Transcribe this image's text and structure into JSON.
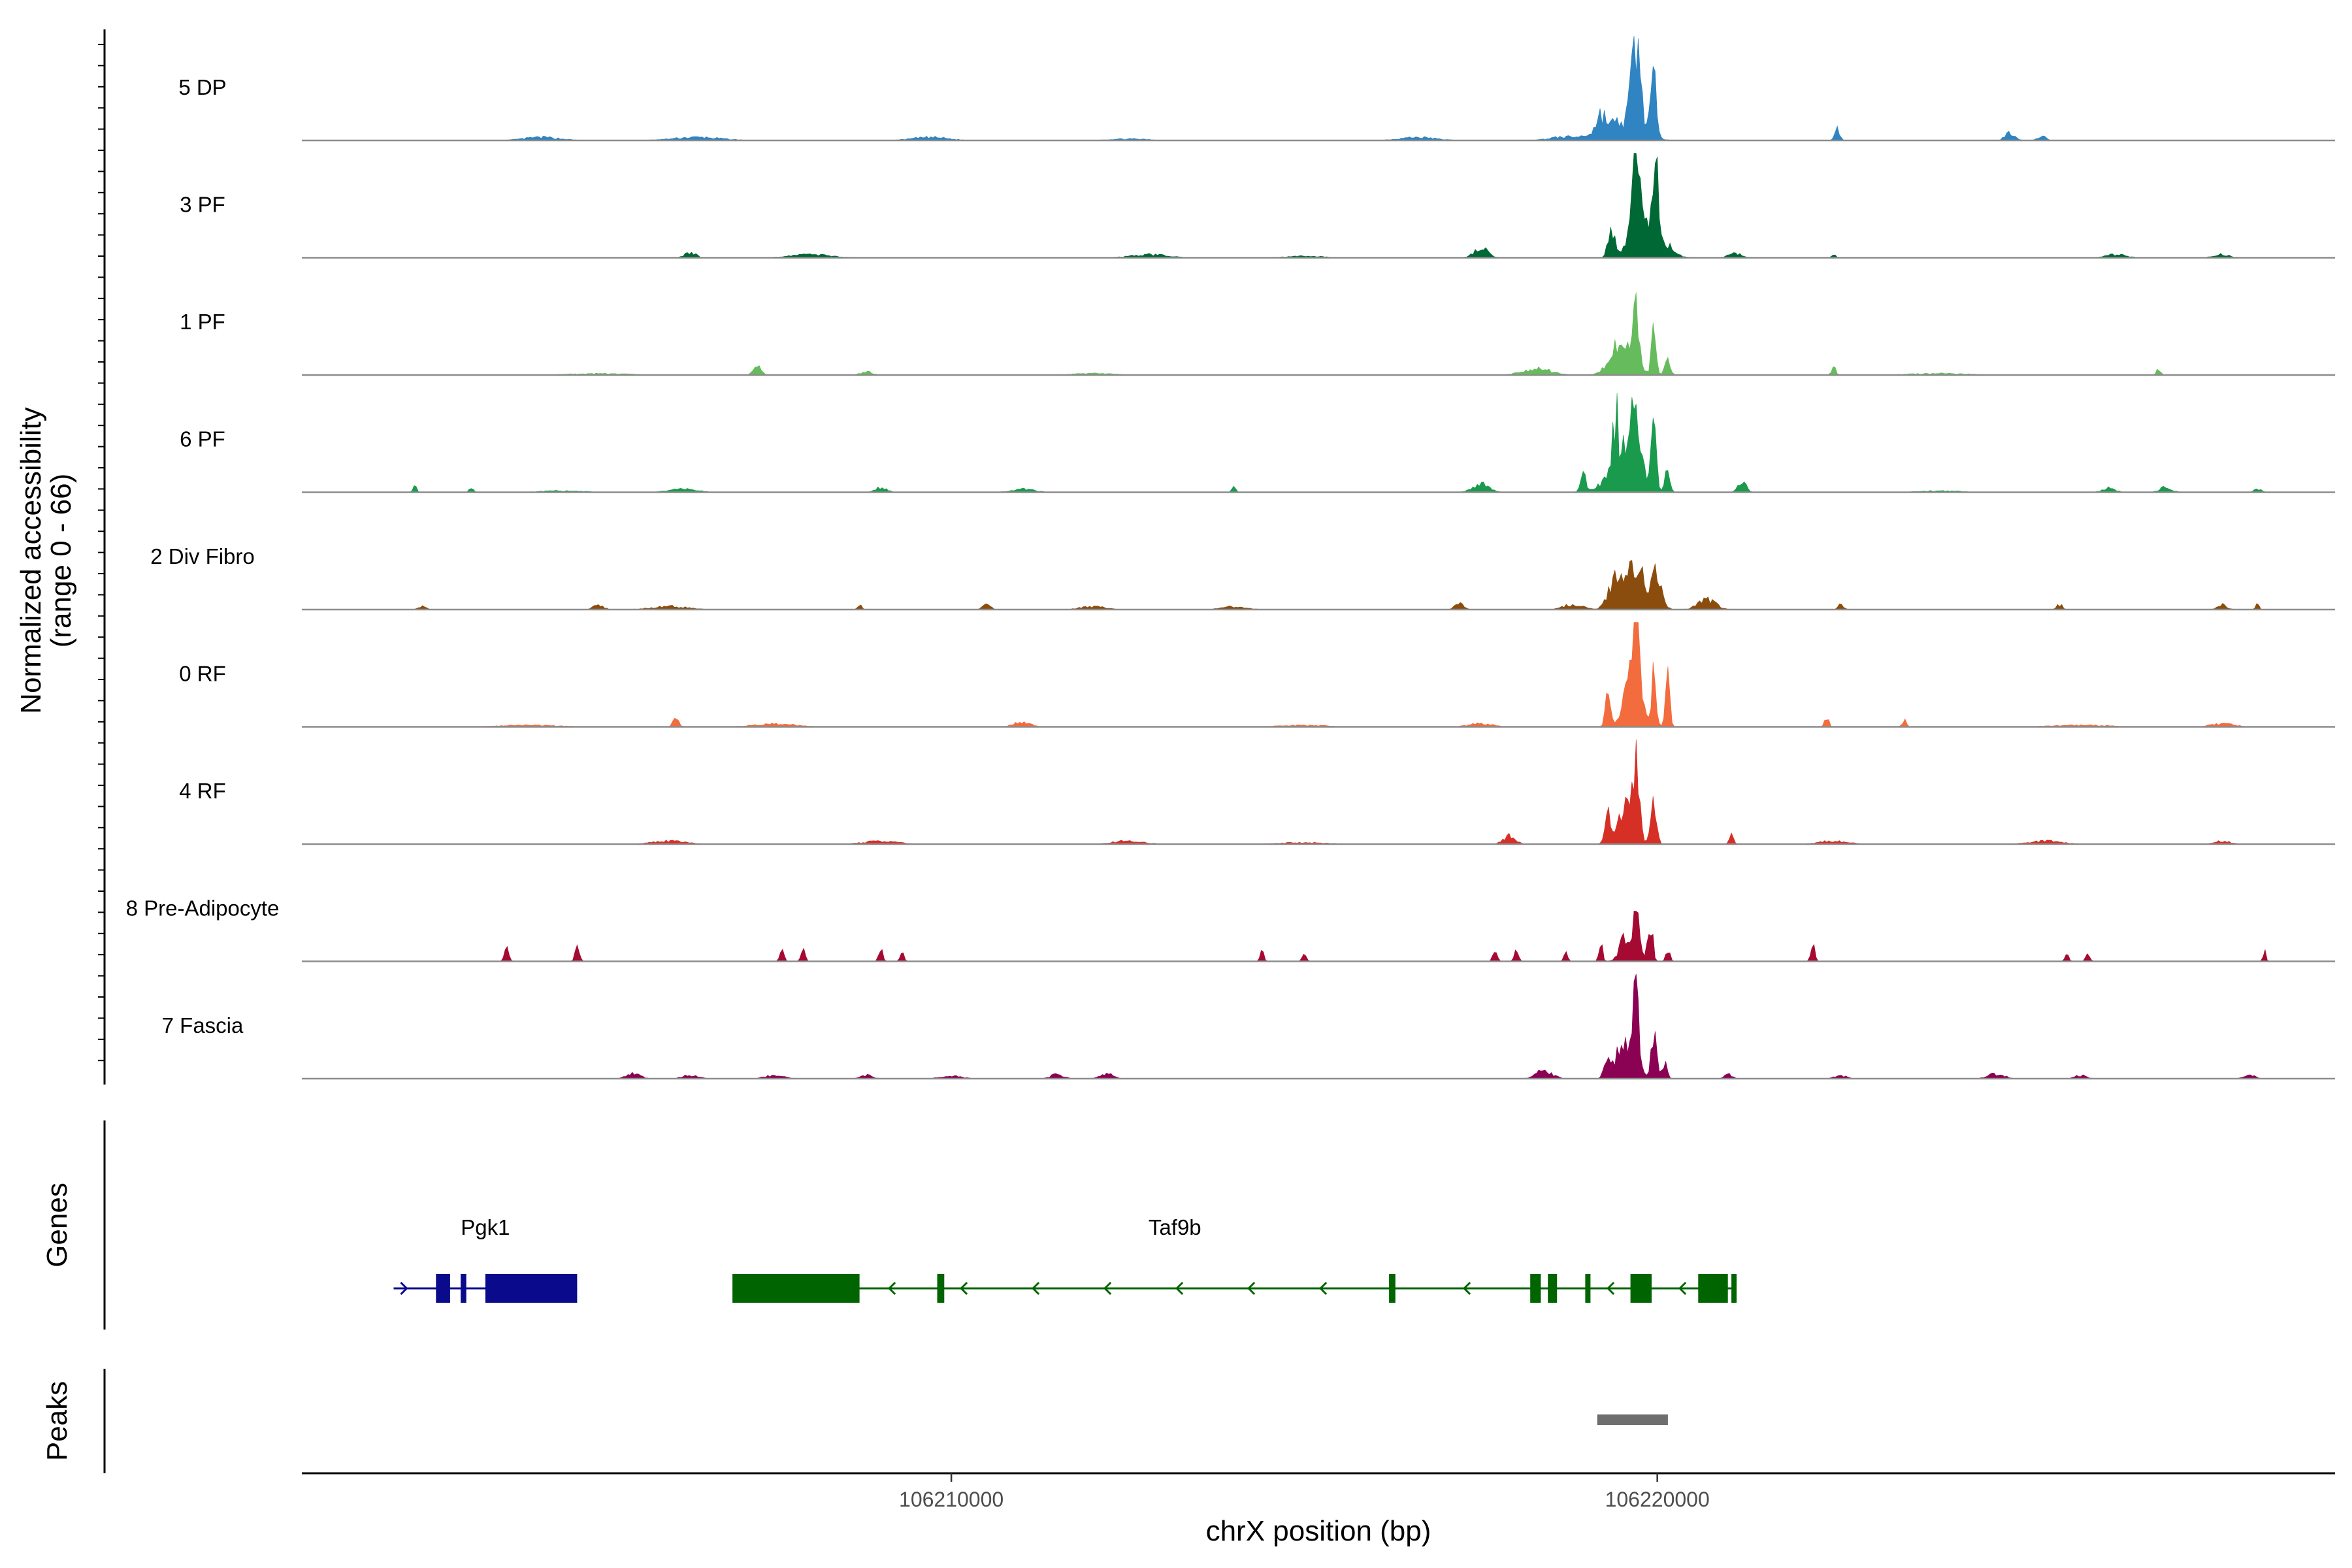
{
  "chart_data": {
    "type": "area",
    "title": "",
    "ylabel": "Normalized accessibility",
    "ylabel_sub": "(range 0 - 66)",
    "yrange": [
      0,
      66
    ],
    "xlabel": "chrX position (bp)",
    "xlim": [
      106200800,
      106229600
    ],
    "xticks": [
      {
        "value": 106210000,
        "label": "106210000"
      },
      {
        "value": 106220000,
        "label": "106220000"
      }
    ],
    "tracks": [
      {
        "name": "5 DP",
        "color": "#2F84C1",
        "peaks": [
          [
            106219450,
            11,
            1000
          ],
          [
            106219700,
            55,
            230
          ],
          [
            106219950,
            32,
            170
          ],
          [
            106219200,
            9,
            220
          ],
          [
            106218650,
            2,
            700
          ],
          [
            106222550,
            7,
            120
          ],
          [
            106225000,
            5,
            250
          ],
          [
            106225450,
            3,
            200
          ],
          [
            106204200,
            2,
            900
          ],
          [
            106206400,
            2,
            1200
          ],
          [
            106209700,
            2,
            900
          ],
          [
            106212500,
            1,
            1000
          ],
          [
            106216600,
            2,
            900
          ]
        ]
      },
      {
        "name": "3 PF",
        "color": "#006834",
        "peaks": [
          [
            106219850,
            28,
            700
          ],
          [
            106219700,
            42,
            170
          ],
          [
            106220000,
            28,
            130
          ],
          [
            106219350,
            18,
            160
          ],
          [
            106217500,
            6,
            350
          ],
          [
            106221100,
            3,
            300
          ],
          [
            106206300,
            3,
            300
          ],
          [
            106208000,
            2,
            1000
          ],
          [
            106212800,
            2,
            900
          ],
          [
            106215000,
            1,
            900
          ],
          [
            106222500,
            3,
            90
          ],
          [
            106226500,
            2,
            500
          ],
          [
            106228000,
            2,
            400
          ]
        ]
      },
      {
        "name": "1 PF",
        "color": "#66BC5C",
        "peaks": [
          [
            106219500,
            20,
            550
          ],
          [
            106219700,
            43,
            140
          ],
          [
            106219950,
            28,
            120
          ],
          [
            106220150,
            12,
            130
          ],
          [
            106218300,
            4,
            700
          ],
          [
            106207250,
            5,
            200
          ],
          [
            106205000,
            1,
            1400
          ],
          [
            106208800,
            2,
            300
          ],
          [
            106212000,
            1,
            1000
          ],
          [
            106222500,
            5,
            110
          ],
          [
            106227100,
            4,
            110
          ],
          [
            106224000,
            1,
            1500
          ]
        ]
      },
      {
        "name": "6 PF",
        "color": "#1A9A4D",
        "peaks": [
          [
            106219550,
            30,
            700
          ],
          [
            106219700,
            48,
            150
          ],
          [
            106219400,
            26,
            150
          ],
          [
            106219950,
            34,
            130
          ],
          [
            106218950,
            12,
            130
          ],
          [
            106220150,
            14,
            120
          ],
          [
            106217500,
            5,
            400
          ],
          [
            106221200,
            7,
            200
          ],
          [
            106202400,
            4,
            100
          ],
          [
            106203200,
            3,
            100
          ],
          [
            106206200,
            2,
            700
          ],
          [
            106209000,
            3,
            300
          ],
          [
            106211000,
            2,
            600
          ],
          [
            106214000,
            3,
            100
          ],
          [
            106226400,
            3,
            300
          ],
          [
            106227200,
            3,
            300
          ],
          [
            106228500,
            2,
            200
          ],
          [
            106204500,
            1,
            1000
          ],
          [
            106224000,
            1,
            1000
          ]
        ]
      },
      {
        "name": "2 Div Fibro",
        "color": "#8B4D0D",
        "peaks": [
          [
            106219700,
            28,
            400
          ],
          [
            106219400,
            18,
            350
          ],
          [
            106220000,
            22,
            250
          ],
          [
            106220700,
            6,
            450
          ],
          [
            106218800,
            3,
            500
          ],
          [
            106217200,
            5,
            200
          ],
          [
            106205000,
            3,
            250
          ],
          [
            106208700,
            3,
            100
          ],
          [
            106210500,
            3,
            200
          ],
          [
            106202500,
            2,
            200
          ],
          [
            106206000,
            2,
            900
          ],
          [
            106212000,
            2,
            600
          ],
          [
            106214000,
            2,
            600
          ],
          [
            106222600,
            3,
            150
          ],
          [
            106225700,
            3,
            150
          ],
          [
            106228000,
            3,
            250
          ],
          [
            106228500,
            3,
            100
          ]
        ]
      },
      {
        "name": "0 RF",
        "color": "#F26C3D",
        "peaks": [
          [
            106219650,
            30,
            400
          ],
          [
            106219300,
            18,
            130
          ],
          [
            106219700,
            53,
            140
          ],
          [
            106219950,
            32,
            130
          ],
          [
            106220150,
            30,
            110
          ],
          [
            106206100,
            5,
            150
          ],
          [
            106211000,
            3,
            400
          ],
          [
            106222400,
            6,
            100
          ],
          [
            106223500,
            4,
            100
          ],
          [
            106204000,
            1,
            1500
          ],
          [
            106207500,
            2,
            1000
          ],
          [
            106215000,
            1,
            1200
          ],
          [
            106217500,
            2,
            600
          ],
          [
            106226000,
            1,
            1500
          ],
          [
            106228000,
            2,
            600
          ]
        ]
      },
      {
        "name": "4 RF",
        "color": "#D62F26",
        "peaks": [
          [
            106219550,
            22,
            450
          ],
          [
            106219700,
            45,
            140
          ],
          [
            106219950,
            32,
            130
          ],
          [
            106219300,
            14,
            130
          ],
          [
            106221050,
            6,
            100
          ],
          [
            106217900,
            5,
            300
          ],
          [
            106206000,
            2,
            800
          ],
          [
            106209000,
            2,
            800
          ],
          [
            106212500,
            2,
            800
          ],
          [
            106215000,
            1,
            1200
          ],
          [
            106222500,
            2,
            700
          ],
          [
            106225500,
            2,
            800
          ],
          [
            106228000,
            2,
            400
          ]
        ]
      },
      {
        "name": "8 Pre-Adipocyte",
        "color": "#A50A33",
        "peaks": [
          [
            106219550,
            16,
            300
          ],
          [
            106219700,
            32,
            160
          ],
          [
            106219900,
            28,
            120
          ],
          [
            106219200,
            10,
            100
          ],
          [
            106220150,
            7,
            100
          ],
          [
            106217700,
            7,
            110
          ],
          [
            106218000,
            7,
            110
          ],
          [
            106218700,
            6,
            100
          ],
          [
            106203700,
            12,
            100
          ],
          [
            106204700,
            12,
            100
          ],
          [
            106207600,
            7,
            100
          ],
          [
            106207900,
            7,
            100
          ],
          [
            106209000,
            7,
            100
          ],
          [
            106209300,
            7,
            100
          ],
          [
            106214400,
            6,
            90
          ],
          [
            106215000,
            6,
            90
          ],
          [
            106222200,
            10,
            100
          ],
          [
            106225800,
            6,
            90
          ],
          [
            106226100,
            6,
            90
          ],
          [
            106228600,
            6,
            80
          ]
        ]
      },
      {
        "name": "7 Fascia",
        "color": "#8B0153",
        "peaks": [
          [
            106219550,
            24,
            450
          ],
          [
            106219700,
            48,
            130
          ],
          [
            106219950,
            30,
            130
          ],
          [
            106219300,
            14,
            150
          ],
          [
            106220100,
            10,
            120
          ],
          [
            106218400,
            5,
            400
          ],
          [
            106221000,
            3,
            200
          ],
          [
            106205500,
            3,
            350
          ],
          [
            106206300,
            2,
            400
          ],
          [
            106207500,
            2,
            500
          ],
          [
            106208800,
            2,
            300
          ],
          [
            106210000,
            2,
            500
          ],
          [
            106211500,
            3,
            300
          ],
          [
            106212200,
            3,
            350
          ],
          [
            106222600,
            2,
            300
          ],
          [
            106224800,
            3,
            400
          ],
          [
            106226000,
            2,
            300
          ],
          [
            106228400,
            2,
            300
          ]
        ]
      }
    ],
    "genes": [
      {
        "name": "Pgk1",
        "color": "#0A0B8C",
        "strand": "+",
        "start": 106202100,
        "end": 106204700,
        "exons": [
          [
            106202700,
            106202900
          ],
          [
            106203050,
            106203130
          ],
          [
            106203400,
            106204700
          ]
        ]
      },
      {
        "name": "Taf9b",
        "color": "#006400",
        "strand": "-",
        "start": 106206900,
        "end": 106221100,
        "exons": [
          [
            106206900,
            106208700
          ],
          [
            106209800,
            106209900
          ],
          [
            106216200,
            106216290
          ],
          [
            106218200,
            106218350
          ],
          [
            106218450,
            106218580
          ],
          [
            106218980,
            106219040
          ],
          [
            106219620,
            106219920
          ],
          [
            106220580,
            106221000
          ],
          [
            106221050,
            106221100
          ]
        ]
      }
    ],
    "peaks_track": [
      [
        106219150,
        106220150
      ]
    ]
  },
  "panels": {
    "genes_label": "Genes",
    "peaks_label": "Peaks"
  },
  "colors": {
    "baseline": "#8c8c8c",
    "axis": "#000000",
    "peak_bar": "#6e6e6e"
  }
}
